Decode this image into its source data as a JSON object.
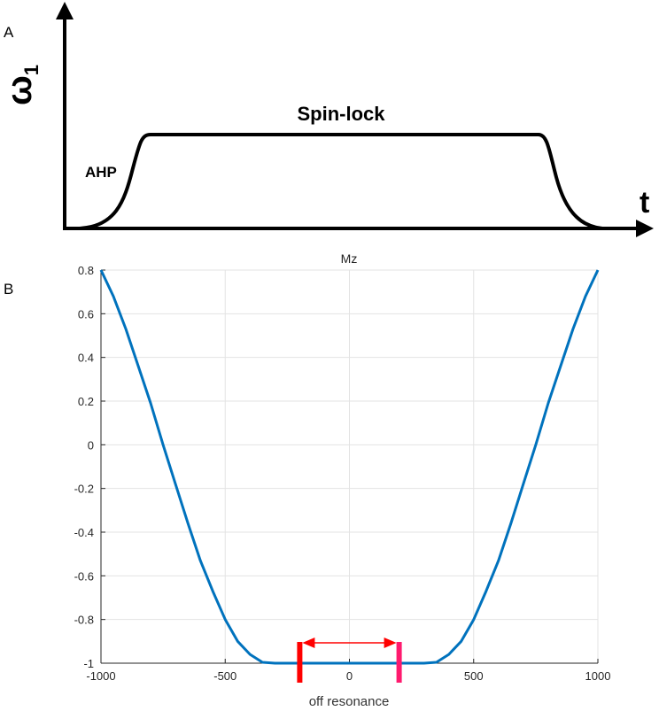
{
  "panel_a": {
    "label": "A",
    "y_axis_label": "ω",
    "y_axis_subscript": "1",
    "x_axis_label": "t",
    "plateau_label": "Spin-lock",
    "ramp_label": "AHP"
  },
  "panel_b": {
    "label": "B"
  },
  "chart_data": {
    "type": "line",
    "title": "Mz",
    "xlabel": "off resonance",
    "ylabel": "",
    "xlim": [
      -1000,
      1000
    ],
    "ylim": [
      -1,
      0.8
    ],
    "grid": true,
    "xticks": [
      "-1000",
      "-500",
      "0",
      "500",
      "1000"
    ],
    "xtick_values": [
      -1000,
      -500,
      0,
      500,
      1000
    ],
    "yticks": [
      "0.8",
      "0.6",
      "0.4",
      "0.2",
      "0",
      "-0.2",
      "-0.4",
      "-0.6",
      "-0.8",
      "-1"
    ],
    "ytick_values": [
      0.8,
      0.6,
      0.4,
      0.2,
      0,
      -0.2,
      -0.4,
      -0.6,
      -0.8,
      -1
    ],
    "series": [
      {
        "name": "Mz",
        "color": "#0072BD",
        "x": [
          -1000,
          -950,
          -900,
          -850,
          -800,
          -750,
          -700,
          -650,
          -600,
          -550,
          -500,
          -450,
          -400,
          -350,
          -300,
          -250,
          -200,
          -150,
          -100,
          -50,
          0,
          50,
          100,
          150,
          200,
          250,
          300,
          350,
          400,
          450,
          500,
          550,
          600,
          650,
          700,
          750,
          800,
          850,
          900,
          950,
          1000
        ],
        "y": [
          0.8,
          0.68,
          0.53,
          0.36,
          0.19,
          0.0,
          -0.18,
          -0.36,
          -0.53,
          -0.67,
          -0.8,
          -0.9,
          -0.96,
          -0.996,
          -1,
          -1,
          -1,
          -1,
          -1,
          -1,
          -1,
          -1,
          -1,
          -1,
          -1,
          -1,
          -1,
          -0.996,
          -0.96,
          -0.9,
          -0.8,
          -0.67,
          -0.53,
          -0.36,
          -0.18,
          0.0,
          0.19,
          0.36,
          0.53,
          0.68,
          0.8
        ]
      }
    ],
    "annotations": {
      "markers": [
        {
          "x": -200,
          "color": "#FF0000"
        },
        {
          "x": 200,
          "color": "#FF1A6E"
        }
      ],
      "arrow": {
        "from": -200,
        "to": 200,
        "color": "#FF0000"
      }
    }
  }
}
